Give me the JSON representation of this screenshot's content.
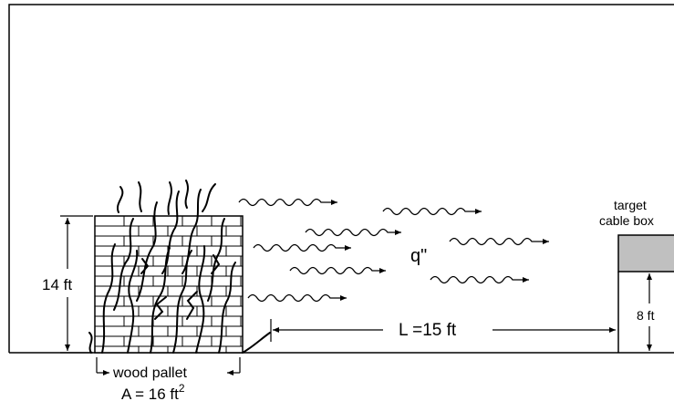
{
  "labels": {
    "pallet_height": "14 ft",
    "heat_flux": "q\"",
    "distance": "L =15 ft",
    "target_line1": "target",
    "target_line2": "cable box",
    "target_height": "8 ft",
    "pallet_name": "wood pallet",
    "area_prefix": "A = 16 ft",
    "area_exponent": "2"
  },
  "colors": {
    "ink": "#000000",
    "background": "#ffffff",
    "cable_box_fill": "#c0c0c0"
  }
}
